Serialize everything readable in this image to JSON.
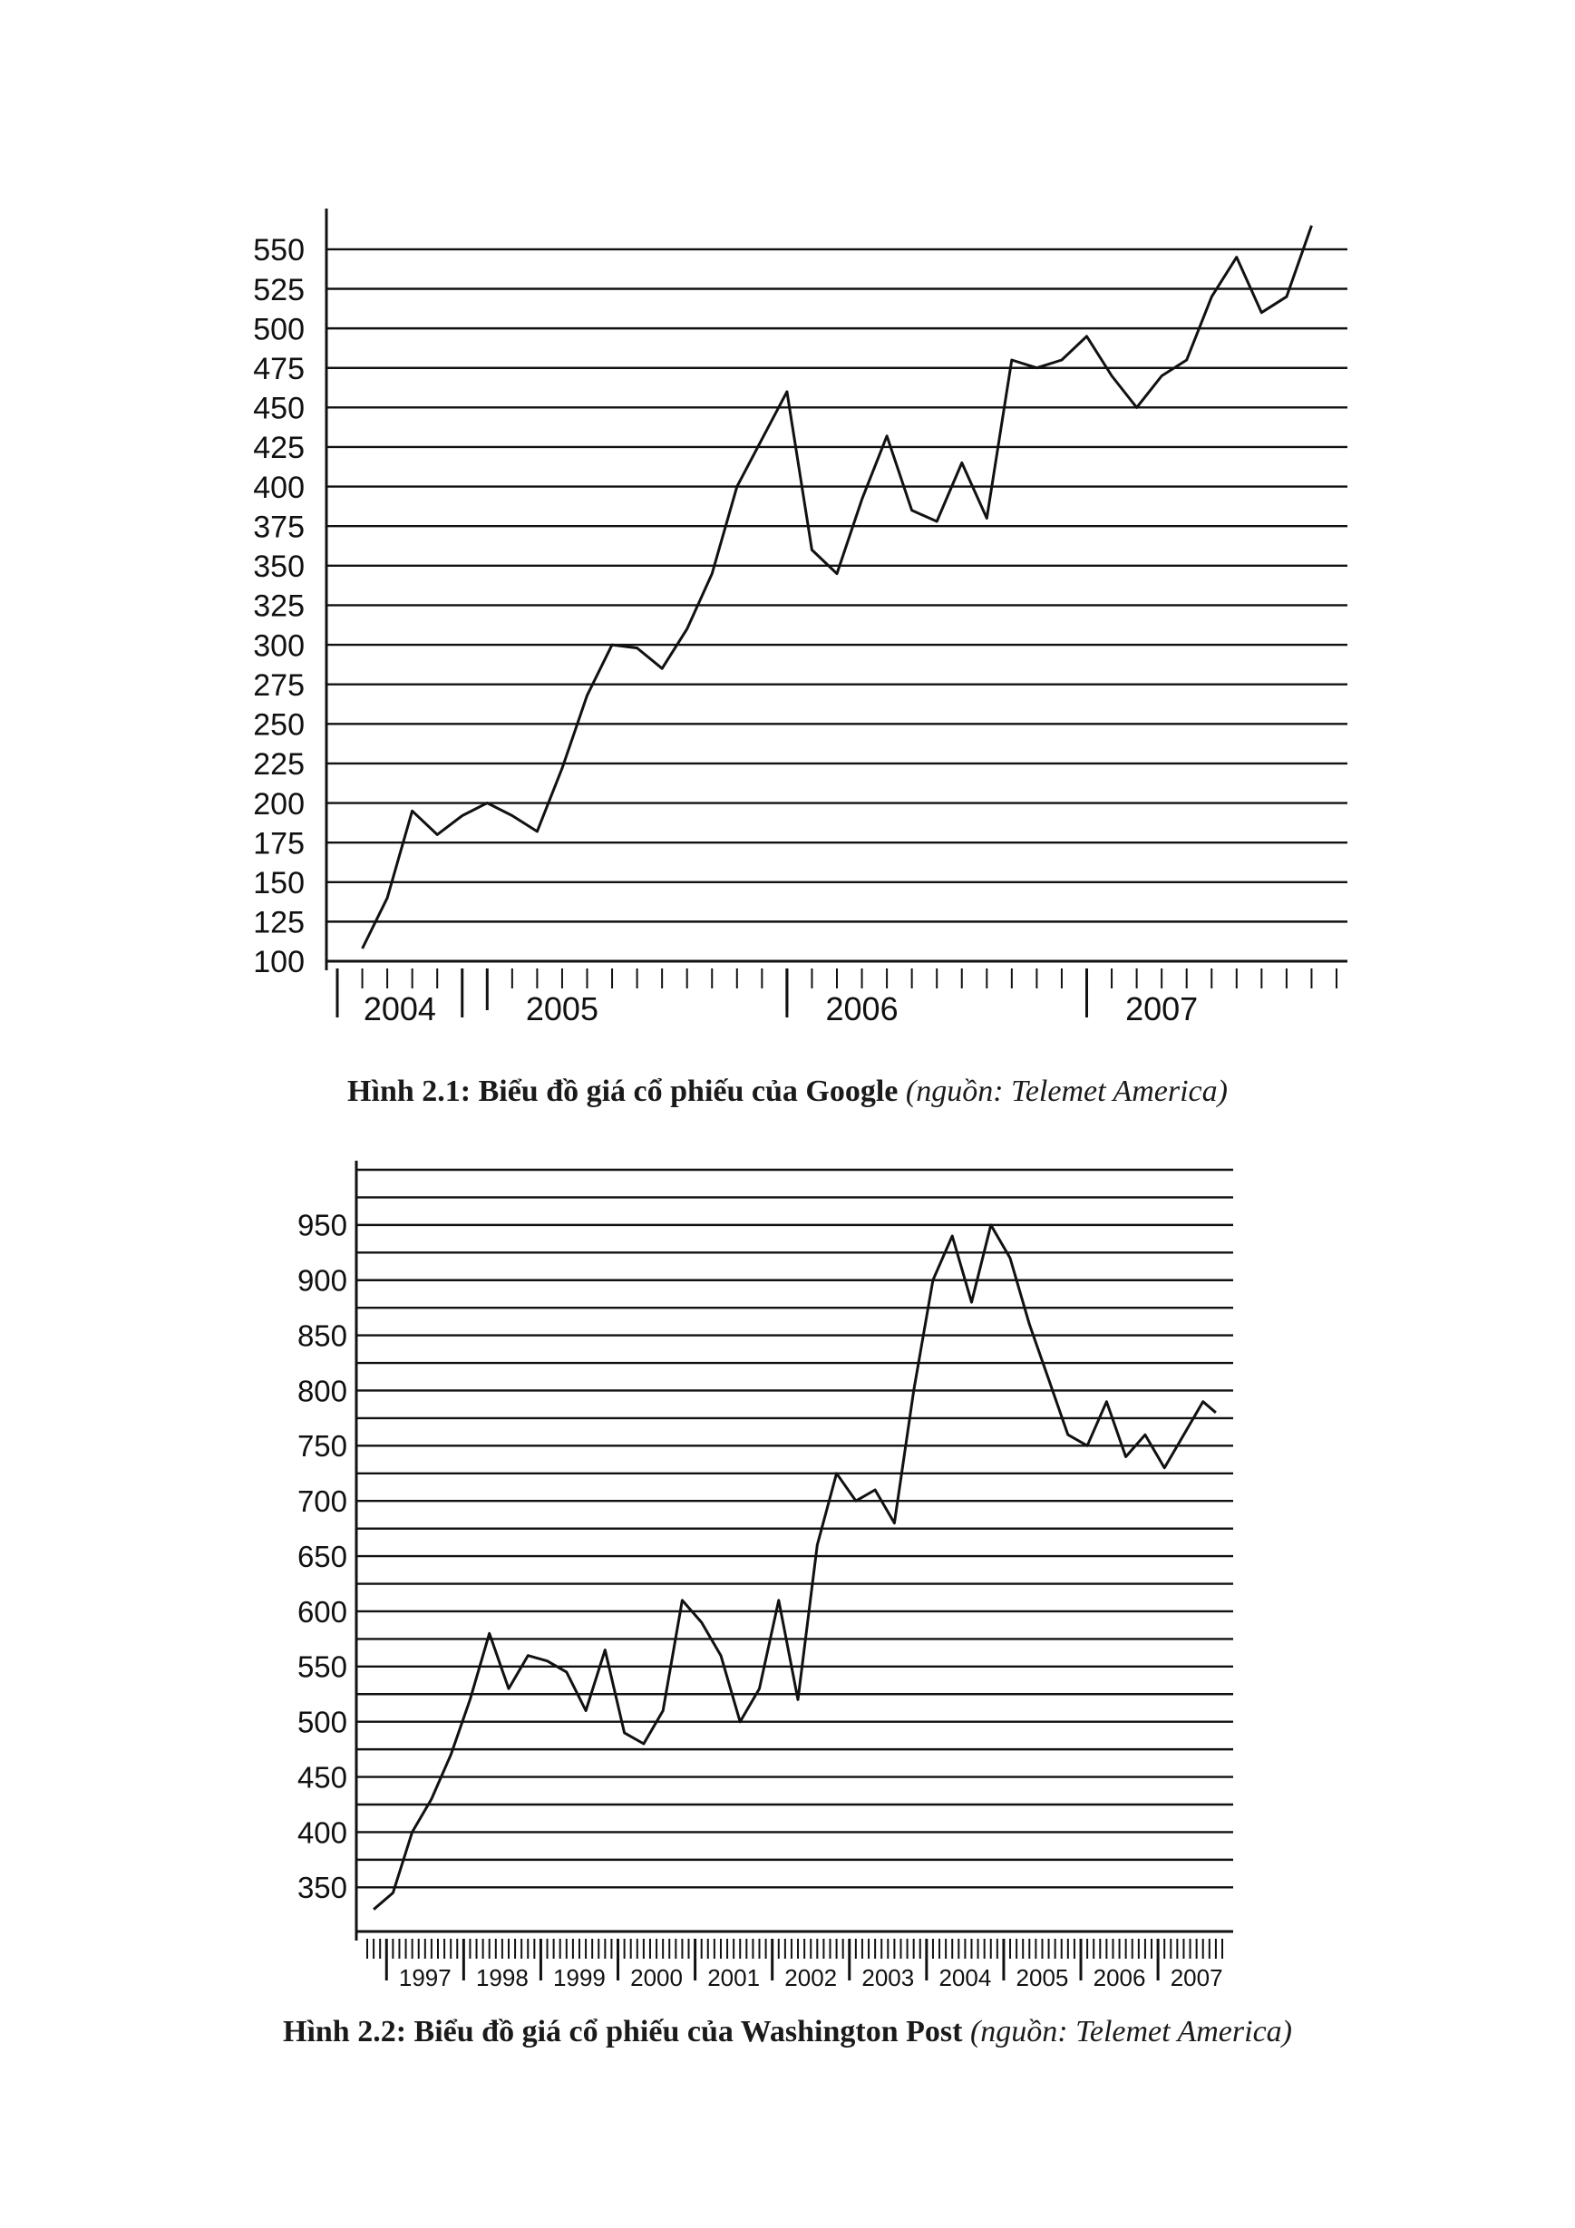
{
  "chart_data": [
    {
      "type": "line",
      "ylim": [
        100,
        570
      ],
      "yticks": [
        100,
        125,
        150,
        175,
        200,
        225,
        250,
        275,
        300,
        325,
        350,
        375,
        400,
        425,
        450,
        475,
        500,
        525,
        550
      ],
      "x_labels": [
        "2004",
        "2005",
        "2006",
        "2007"
      ],
      "grid": true,
      "x": [
        "2004-08",
        "2004-09",
        "2004-10",
        "2004-11",
        "2004-12",
        "2005-01",
        "2005-02",
        "2005-03",
        "2005-04",
        "2005-05",
        "2005-06",
        "2005-07",
        "2005-08",
        "2005-09",
        "2005-10",
        "2005-11",
        "2005-12",
        "2006-01",
        "2006-02",
        "2006-03",
        "2006-04",
        "2006-05",
        "2006-06",
        "2006-07",
        "2006-08",
        "2006-09",
        "2006-10",
        "2006-11",
        "2006-12",
        "2007-01",
        "2007-02",
        "2007-03",
        "2007-04",
        "2007-05",
        "2007-06",
        "2007-07",
        "2007-08",
        "2007-09",
        "2007-10"
      ],
      "series": [
        {
          "values": [
            108,
            140,
            195,
            180,
            192,
            200,
            192,
            182,
            222,
            268,
            300,
            298,
            285,
            310,
            345,
            400,
            430,
            460,
            360,
            345,
            392,
            432,
            385,
            378,
            415,
            380,
            480,
            475,
            480,
            495,
            470,
            450,
            470,
            480,
            520,
            545,
            510,
            520,
            565
          ]
        }
      ]
    },
    {
      "type": "line",
      "ylim": [
        310,
        1000
      ],
      "yticks": [
        350,
        400,
        450,
        500,
        550,
        600,
        650,
        700,
        750,
        800,
        850,
        900,
        950
      ],
      "x_labels": [
        "1997",
        "1998",
        "1999",
        "2000",
        "2001",
        "2002",
        "2003",
        "2004",
        "2005",
        "2006",
        "2007"
      ],
      "grid": true,
      "x": [
        "1996-11",
        "1997-02",
        "1997-05",
        "1997-08",
        "1997-11",
        "1998-02",
        "1998-05",
        "1998-08",
        "1998-11",
        "1999-02",
        "1999-05",
        "1999-08",
        "1999-11",
        "2000-02",
        "2000-05",
        "2000-08",
        "2000-11",
        "2001-02",
        "2001-05",
        "2001-08",
        "2001-11",
        "2002-02",
        "2002-05",
        "2002-08",
        "2002-11",
        "2003-02",
        "2003-05",
        "2003-08",
        "2003-11",
        "2004-02",
        "2004-05",
        "2004-08",
        "2004-11",
        "2005-02",
        "2005-05",
        "2005-08",
        "2005-11",
        "2006-02",
        "2006-05",
        "2006-08",
        "2006-11",
        "2007-02",
        "2007-05",
        "2007-08",
        "2007-10"
      ],
      "series": [
        {
          "values": [
            330,
            345,
            400,
            430,
            470,
            520,
            580,
            530,
            560,
            555,
            545,
            510,
            565,
            490,
            480,
            510,
            610,
            590,
            560,
            500,
            530,
            610,
            520,
            660,
            725,
            700,
            710,
            680,
            800,
            900,
            940,
            880,
            950,
            920,
            860,
            810,
            760,
            750,
            790,
            740,
            760,
            730,
            760,
            790,
            780
          ]
        }
      ]
    }
  ],
  "captions": [
    {
      "main": "Hình 2.1: Biểu đồ giá cổ phiếu của Google",
      "source": "(nguồn: Telemet America)"
    },
    {
      "main": "Hình 2.2: Biểu đồ giá cổ phiếu của Washington Post",
      "source": "(nguồn: Telemet America)"
    }
  ]
}
